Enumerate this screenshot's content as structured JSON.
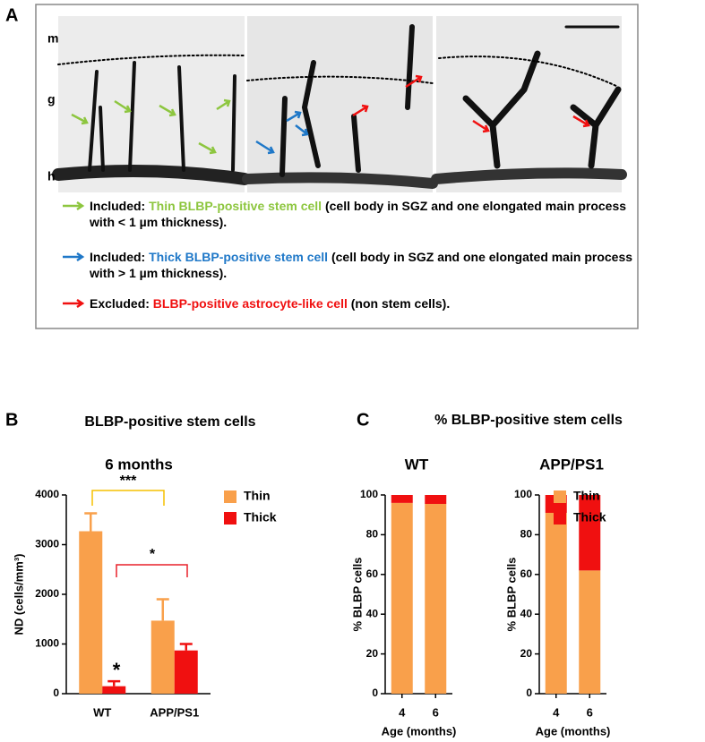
{
  "panel_labels": [
    "A",
    "B",
    "C"
  ],
  "panel_a": {
    "layer_labels": [
      "m",
      "g",
      "h"
    ],
    "legend": [
      {
        "status": "Included:",
        "label": "Thin BLBP-positive stem cell",
        "label_color": "#8dc63f",
        "description": "(cell body in SGZ and one elongated main process with < 1 µm thickness).",
        "arrow_color": "#8dc63f"
      },
      {
        "status": "Included:",
        "label": "Thick BLBP-positive stem cell",
        "label_color": "#1f78c8",
        "description": "(cell body in SGZ and one elongated main process  with > 1 µm thickness).",
        "arrow_color": "#1f78c8"
      },
      {
        "status": "Excluded:",
        "label": "BLBP-positive astrocyte-like cell",
        "label_color": "#f01010",
        "description": "(non stem cells).",
        "arrow_color": "#f01010"
      }
    ]
  },
  "chart_data": [
    {
      "type": "bar",
      "title": "BLBP-positive stem cells",
      "subtitle": "6 months",
      "y_label": "ND (cells/mm³)",
      "categories": [
        "WT",
        "APP/PS1"
      ],
      "series": [
        {
          "name": "Thin",
          "color": "#f9a04b",
          "values": [
            3270,
            1470
          ],
          "errors": [
            360,
            430
          ]
        },
        {
          "name": "Thick",
          "color": "#f01010",
          "values": [
            150,
            870
          ],
          "errors": [
            100,
            130
          ]
        }
      ],
      "ylim": [
        0,
        4000
      ],
      "yticks": [
        0,
        1000,
        2000,
        3000,
        4000
      ],
      "legend": "right",
      "annotations": [
        {
          "text": "***",
          "color": "#f5c000"
        },
        {
          "text": "*",
          "color": "#e8202a"
        },
        {
          "text": "*",
          "color": "#000000"
        }
      ]
    },
    {
      "type": "stacked_bar",
      "title": "% BLBP-positive stem cells",
      "subtitle": "WT",
      "y_label": "% BLBP cells",
      "x_label": "Age (months)",
      "categories": [
        "4",
        "6"
      ],
      "series": [
        {
          "name": "Thin",
          "color": "#f9a04b",
          "values": [
            96,
            95.5
          ]
        },
        {
          "name": "Thick",
          "color": "#f01010",
          "values": [
            4,
            4.5
          ]
        }
      ],
      "ylim": [
        0,
        100
      ],
      "yticks": [
        0,
        20,
        40,
        60,
        80,
        100
      ],
      "legend": "none"
    },
    {
      "type": "stacked_bar",
      "subtitle": "APP/PS1",
      "y_label": "% BLBP cells",
      "x_label": "Age (months)",
      "categories": [
        "4",
        "6"
      ],
      "series": [
        {
          "name": "Thin",
          "color": "#f9a04b",
          "values": [
            91,
            62
          ]
        },
        {
          "name": "Thick",
          "color": "#f01010",
          "values": [
            9,
            38
          ]
        }
      ],
      "ylim": [
        0,
        100
      ],
      "yticks": [
        0,
        20,
        40,
        60,
        80,
        100
      ],
      "legend": "right"
    }
  ]
}
